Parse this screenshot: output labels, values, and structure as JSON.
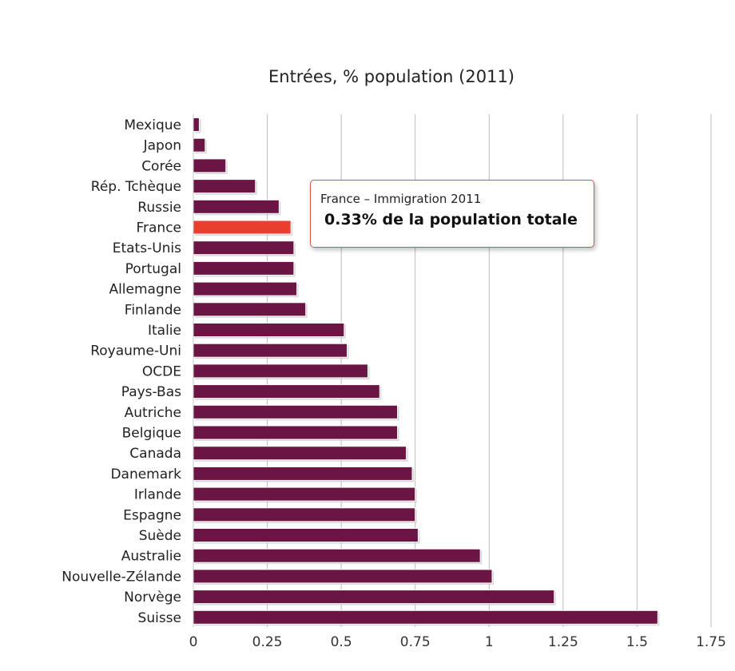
{
  "chart_data": {
    "type": "bar",
    "orientation": "horizontal",
    "title": "Entrées, % population (2011)",
    "categories": [
      "Mexique",
      "Japon",
      "Corée",
      "Rép. Tchèque",
      "Russie",
      "France",
      "Etats-Unis",
      "Portugal",
      "Allemagne",
      "Finlande",
      "Italie",
      "Royaume-Uni",
      "OCDE",
      "Pays-Bas",
      "Autriche",
      "Belgique",
      "Canada",
      "Danemark",
      "Irlande",
      "Espagne",
      "Suède",
      "Australie",
      "Nouvelle-Zélande",
      "Norvège",
      "Suisse"
    ],
    "values": [
      0.02,
      0.04,
      0.11,
      0.21,
      0.29,
      0.33,
      0.34,
      0.34,
      0.35,
      0.38,
      0.51,
      0.52,
      0.59,
      0.63,
      0.69,
      0.69,
      0.72,
      0.74,
      0.75,
      0.75,
      0.76,
      0.97,
      1.01,
      1.22,
      1.57
    ],
    "highlight": "France",
    "xlim": [
      0,
      1.75
    ],
    "x_ticks": [
      "0",
      "0.25",
      "0.5",
      "0.75",
      "1",
      "1.25",
      "1.5",
      "1.75"
    ],
    "grid": "vertical",
    "colors": {
      "bar": "#6b1544",
      "highlight": "#e84030",
      "grid": "#bbbbbb",
      "tooltip_border": "#d9534f"
    }
  },
  "tooltip": {
    "line1": "France – Immigration 2011",
    "line2": "0.33% de la population totale"
  }
}
